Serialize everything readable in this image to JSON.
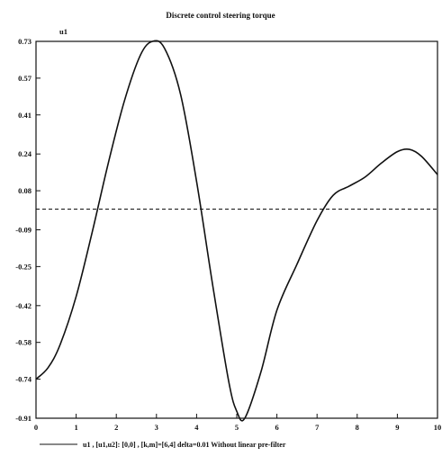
{
  "chart_data": {
    "type": "line",
    "title": "Discrete control steering torque",
    "y_unit_label": "u1",
    "xlim": [
      0,
      10
    ],
    "ylim": [
      -0.91,
      0.73
    ],
    "x_ticks": [
      0,
      1,
      2,
      3,
      4,
      5,
      6,
      7,
      8,
      9,
      10
    ],
    "y_ticks": [
      0.73,
      0.57,
      0.41,
      0.24,
      0.08,
      -0.09,
      -0.25,
      -0.42,
      -0.58,
      -0.74,
      -0.91
    ],
    "grid": false,
    "legend_position": "bottom",
    "legend_text": "u1 ,  [u1,u2]: [0,0] ,  [k,m]=[6,4]  delta=0.01  Without linear pre-filter",
    "series": [
      {
        "name": "u1",
        "style": "solid",
        "x": [
          0,
          0.3,
          0.6,
          1.0,
          1.4,
          1.8,
          2.2,
          2.6,
          2.9,
          3.2,
          3.6,
          4.0,
          4.4,
          4.8,
          5.0,
          5.2,
          5.6,
          6.0,
          6.5,
          7.0,
          7.4,
          7.8,
          8.2,
          8.6,
          9.0,
          9.3,
          9.6,
          10.0
        ],
        "y": [
          -0.74,
          -0.69,
          -0.59,
          -0.38,
          -0.1,
          0.2,
          0.47,
          0.67,
          0.73,
          0.7,
          0.5,
          0.12,
          -0.33,
          -0.75,
          -0.88,
          -0.91,
          -0.71,
          -0.44,
          -0.24,
          -0.05,
          0.06,
          0.1,
          0.14,
          0.2,
          0.25,
          0.26,
          0.23,
          0.15
        ]
      },
      {
        "style": "dashed",
        "x": [
          0,
          10
        ],
        "y": [
          0.0,
          0.0
        ]
      }
    ]
  }
}
